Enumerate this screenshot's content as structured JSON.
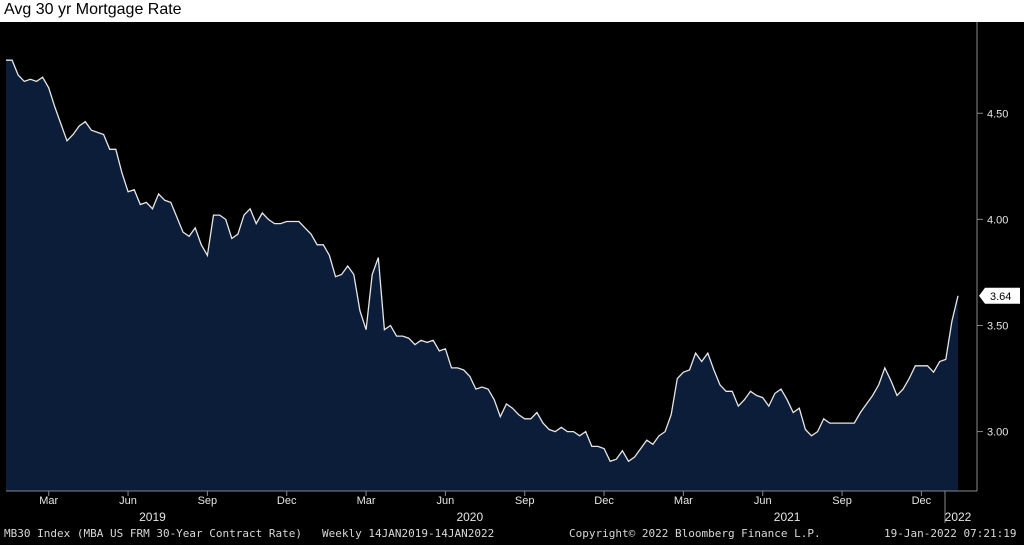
{
  "chart_data": {
    "type": "area",
    "title": "Avg 30 yr Mortgage Rate",
    "ylim": [
      2.72,
      4.93
    ],
    "yticks": [
      "3.00",
      "3.50",
      "4.00",
      "4.50"
    ],
    "last_value_label": "3.64",
    "x_month_labels": [
      {
        "label": "Mar",
        "index": 7
      },
      {
        "label": "Jun",
        "index": 20
      },
      {
        "label": "Sep",
        "index": 33
      },
      {
        "label": "Dec",
        "index": 46
      },
      {
        "label": "Mar",
        "index": 59
      },
      {
        "label": "Jun",
        "index": 72
      },
      {
        "label": "Sep",
        "index": 85
      },
      {
        "label": "Dec",
        "index": 98
      },
      {
        "label": "Mar",
        "index": 111
      },
      {
        "label": "Jun",
        "index": 124
      },
      {
        "label": "Sep",
        "index": 137
      },
      {
        "label": "Dec",
        "index": 150
      }
    ],
    "x_year_labels": [
      {
        "label": "2019",
        "index": 24
      },
      {
        "label": "2020",
        "index": 76
      },
      {
        "label": "2021",
        "index": 128
      },
      {
        "label": "2022",
        "index": 156
      }
    ],
    "series": [
      {
        "values": [
          4.75,
          4.75,
          4.68,
          4.65,
          4.66,
          4.65,
          4.67,
          4.62,
          4.53,
          4.45,
          4.37,
          4.4,
          4.44,
          4.46,
          4.42,
          4.41,
          4.4,
          4.33,
          4.33,
          4.22,
          4.13,
          4.14,
          4.07,
          4.08,
          4.05,
          4.12,
          4.09,
          4.08,
          4.01,
          3.94,
          3.92,
          3.96,
          3.88,
          3.83,
          4.02,
          4.02,
          4.0,
          3.91,
          3.93,
          4.02,
          4.05,
          3.98,
          4.03,
          4.0,
          3.98,
          3.98,
          3.99,
          3.99,
          3.99,
          3.96,
          3.93,
          3.88,
          3.88,
          3.83,
          3.73,
          3.74,
          3.78,
          3.74,
          3.57,
          3.48,
          3.74,
          3.82,
          3.48,
          3.5,
          3.45,
          3.45,
          3.44,
          3.41,
          3.43,
          3.42,
          3.43,
          3.38,
          3.39,
          3.3,
          3.3,
          3.29,
          3.26,
          3.2,
          3.21,
          3.2,
          3.15,
          3.07,
          3.13,
          3.11,
          3.08,
          3.06,
          3.06,
          3.09,
          3.04,
          3.01,
          3.0,
          3.02,
          3.0,
          3.0,
          2.98,
          3.0,
          2.93,
          2.93,
          2.92,
          2.86,
          2.87,
          2.91,
          2.86,
          2.88,
          2.92,
          2.96,
          2.94,
          2.98,
          3.0,
          3.08,
          3.25,
          3.28,
          3.29,
          3.37,
          3.33,
          3.37,
          3.29,
          3.22,
          3.19,
          3.19,
          3.12,
          3.15,
          3.19,
          3.17,
          3.16,
          3.12,
          3.18,
          3.2,
          3.15,
          3.09,
          3.11,
          3.01,
          2.98,
          3.0,
          3.06,
          3.04,
          3.04,
          3.04,
          3.04,
          3.04,
          3.09,
          3.13,
          3.17,
          3.22,
          3.3,
          3.24,
          3.17,
          3.2,
          3.25,
          3.31,
          3.31,
          3.31,
          3.28,
          3.33,
          3.34,
          3.52,
          3.64
        ]
      }
    ],
    "footer": {
      "index_desc": "MB30 Index (MBA US FRM 30-Year Contract Rate)",
      "range": "Weekly 14JAN2019-14JAN2022",
      "copyright": "Copyright© 2022 Bloomberg Finance L.P.",
      "timestamp": "19-Jan-2022 07:21:19"
    },
    "colors": {
      "background": "#000000",
      "fill": "#0b1d38",
      "line": "#e6e6e6",
      "axis_text": "#e6e6e6",
      "last_value_box": "#ffffff"
    }
  }
}
